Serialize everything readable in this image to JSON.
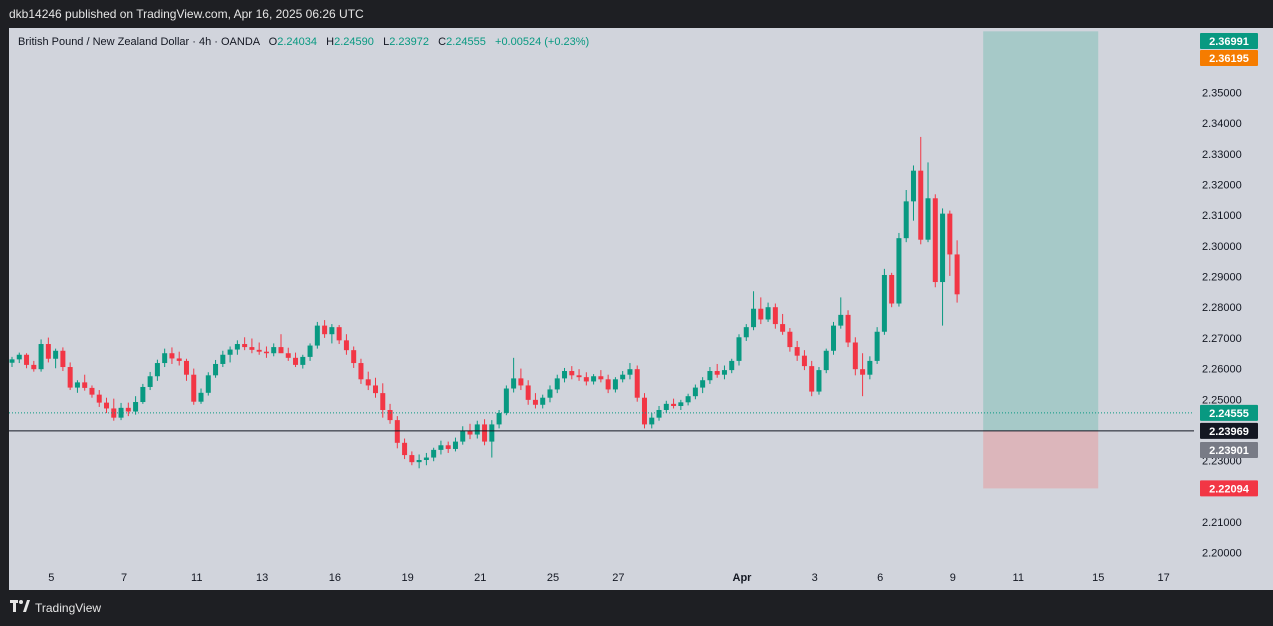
{
  "header": {
    "published_text": "dkb14246 published on TradingView.com, Apr 16, 2025 06:26 UTC"
  },
  "legend": {
    "symbol": "British Pound / New Zealand Dollar · 4h · OANDA",
    "o_label": "O",
    "o_value": "2.24034",
    "h_label": "H",
    "h_value": "2.24590",
    "l_label": "L",
    "l_value": "2.23972",
    "c_label": "C",
    "c_value": "2.24555",
    "change": "+0.00524 (+0.23%)"
  },
  "footer": {
    "brand": "TradingView"
  },
  "colors": {
    "background": "#d1d4dc",
    "up": "#089981",
    "down": "#f23645",
    "profit_zone": "#a6c9c8",
    "loss_zone": "#dcb6bb",
    "frame": "#1e1f23"
  },
  "price_tags": {
    "target": "2.36991",
    "orange": "2.36195",
    "current": "2.24555",
    "entry": "2.23969",
    "gray": "2.23901",
    "stop": "2.22094"
  },
  "chart_data": {
    "type": "candlestick",
    "timeframe": "4h",
    "y_ticks": [
      "2.35000",
      "2.34000",
      "2.33000",
      "2.32000",
      "2.31000",
      "2.30000",
      "2.29000",
      "2.28000",
      "2.27000",
      "2.26000",
      "2.25000",
      "2.24000",
      "2.23000",
      "2.22000",
      "2.21000",
      "2.20000"
    ],
    "x_ticks": [
      "5",
      "7",
      "11",
      "13",
      "16",
      "19",
      "21",
      "25",
      "27",
      "Apr",
      "3",
      "6",
      "9",
      "11",
      "15",
      "17"
    ],
    "ylim": [
      2.195,
      2.371
    ],
    "position": {
      "type": "long",
      "entry": 2.23969,
      "target": 2.36991,
      "stop": 2.22094,
      "start_index": 134,
      "end_index": 149
    },
    "current_price": 2.24555,
    "candles": [
      [
        2.2619,
        2.2638,
        2.2605,
        2.263
      ],
      [
        2.263,
        2.2652,
        2.2618,
        2.2645
      ],
      [
        2.2645,
        2.265,
        2.2601,
        2.2612
      ],
      [
        2.2612,
        2.2625,
        2.259,
        2.2598
      ],
      [
        2.2598,
        2.2695,
        2.259,
        2.268
      ],
      [
        2.268,
        2.2701,
        2.262,
        2.2632
      ],
      [
        2.2632,
        2.2665,
        2.2601,
        2.2658
      ],
      [
        2.2658,
        2.2669,
        2.2592,
        2.2605
      ],
      [
        2.2605,
        2.262,
        2.253,
        2.2538
      ],
      [
        2.2538,
        2.2562,
        2.2521,
        2.2555
      ],
      [
        2.2555,
        2.258,
        2.2528,
        2.2537
      ],
      [
        2.2537,
        2.2545,
        2.2505,
        2.2515
      ],
      [
        2.2515,
        2.253,
        2.2475,
        2.2489
      ],
      [
        2.2489,
        2.2505,
        2.2455,
        2.247
      ],
      [
        2.247,
        2.2502,
        2.243,
        2.244
      ],
      [
        2.244,
        2.2488,
        2.2432,
        2.2472
      ],
      [
        2.2472,
        2.2489,
        2.2445,
        2.246
      ],
      [
        2.246,
        2.251,
        2.245,
        2.2491
      ],
      [
        2.2491,
        2.255,
        2.2485,
        2.254
      ],
      [
        2.254,
        2.2589,
        2.253,
        2.2575
      ],
      [
        2.2575,
        2.2629,
        2.256,
        2.2618
      ],
      [
        2.2618,
        2.2665,
        2.2605,
        2.265
      ],
      [
        2.265,
        2.2669,
        2.2615,
        2.2633
      ],
      [
        2.2633,
        2.2655,
        2.261,
        2.2625
      ],
      [
        2.2625,
        2.2632,
        2.256,
        2.258
      ],
      [
        2.258,
        2.26,
        2.2482,
        2.2492
      ],
      [
        2.2492,
        2.2535,
        2.2485,
        2.2521
      ],
      [
        2.2521,
        2.2588,
        2.2512,
        2.2578
      ],
      [
        2.2578,
        2.2628,
        2.257,
        2.2615
      ],
      [
        2.2615,
        2.2658,
        2.2605,
        2.2645
      ],
      [
        2.2645,
        2.2672,
        2.262,
        2.2662
      ],
      [
        2.2662,
        2.2692,
        2.2645,
        2.268
      ],
      [
        2.268,
        2.2702,
        2.266,
        2.267
      ],
      [
        2.267,
        2.2698,
        2.265,
        2.2661
      ],
      [
        2.2661,
        2.2685,
        2.2645,
        2.2655
      ],
      [
        2.2655,
        2.2672,
        2.2635,
        2.265
      ],
      [
        2.265,
        2.2682,
        2.264,
        2.267
      ],
      [
        2.267,
        2.2712,
        2.266,
        2.265
      ],
      [
        2.265,
        2.2668,
        2.2625,
        2.2635
      ],
      [
        2.2635,
        2.2652,
        2.2605,
        2.2612
      ],
      [
        2.2612,
        2.2645,
        2.26,
        2.2638
      ],
      [
        2.2638,
        2.2682,
        2.2625,
        2.2675
      ],
      [
        2.2675,
        2.2752,
        2.2665,
        2.274
      ],
      [
        2.274,
        2.2758,
        2.27,
        2.2712
      ],
      [
        2.2712,
        2.2745,
        2.2682,
        2.2735
      ],
      [
        2.2735,
        2.2742,
        2.268,
        2.2692
      ],
      [
        2.2692,
        2.2712,
        2.2645,
        2.266
      ],
      [
        2.266,
        2.2672,
        2.2602,
        2.2618
      ],
      [
        2.2618,
        2.2632,
        2.255,
        2.2565
      ],
      [
        2.2565,
        2.259,
        2.253,
        2.2545
      ],
      [
        2.2545,
        2.257,
        2.2505,
        2.252
      ],
      [
        2.252,
        2.2552,
        2.244,
        2.2465
      ],
      [
        2.2465,
        2.2485,
        2.242,
        2.2432
      ],
      [
        2.2432,
        2.2445,
        2.234,
        2.2358
      ],
      [
        2.2358,
        2.2372,
        2.2305,
        2.2318
      ],
      [
        2.2318,
        2.233,
        2.2285,
        2.2295
      ],
      [
        2.2295,
        2.232,
        2.2275,
        2.2302
      ],
      [
        2.2302,
        2.2325,
        2.2285,
        2.231
      ],
      [
        2.231,
        2.2342,
        2.2298,
        2.2335
      ],
      [
        2.2335,
        2.2365,
        2.232,
        2.235
      ],
      [
        2.235,
        2.2362,
        2.2325,
        2.2338
      ],
      [
        2.2338,
        2.2375,
        2.233,
        2.2362
      ],
      [
        2.2362,
        2.2412,
        2.2352,
        2.2398
      ],
      [
        2.2398,
        2.242,
        2.237,
        2.2385
      ],
      [
        2.2385,
        2.243,
        2.2372,
        2.2418
      ],
      [
        2.2418,
        2.2435,
        2.235,
        2.2362
      ],
      [
        2.2362,
        2.2432,
        2.231,
        2.2418
      ],
      [
        2.2418,
        2.2465,
        2.2405,
        2.2455
      ],
      [
        2.2455,
        2.2545,
        2.2448,
        2.2535
      ],
      [
        2.2535,
        2.2635,
        2.2522,
        2.2568
      ],
      [
        2.2568,
        2.26,
        2.253,
        2.2545
      ],
      [
        2.2545,
        2.2562,
        2.2482,
        2.2498
      ],
      [
        2.2498,
        2.252,
        2.247,
        2.2482
      ],
      [
        2.2482,
        2.2515,
        2.247,
        2.2505
      ],
      [
        2.2505,
        2.2545,
        2.249,
        2.2532
      ],
      [
        2.2532,
        2.258,
        2.252,
        2.2568
      ],
      [
        2.2568,
        2.2602,
        2.2555,
        2.2592
      ],
      [
        2.2592,
        2.2608,
        2.2565,
        2.2578
      ],
      [
        2.2578,
        2.2598,
        2.256,
        2.2572
      ],
      [
        2.2572,
        2.2588,
        2.2545,
        2.2558
      ],
      [
        2.2558,
        2.2582,
        2.2548,
        2.2575
      ],
      [
        2.2575,
        2.2595,
        2.2555,
        2.2565
      ],
      [
        2.2565,
        2.258,
        2.252,
        2.2532
      ],
      [
        2.2532,
        2.2572,
        2.2522,
        2.2565
      ],
      [
        2.2565,
        2.2592,
        2.2555,
        2.258
      ],
      [
        2.258,
        2.2618,
        2.2565,
        2.2598
      ],
      [
        2.2598,
        2.261,
        2.2492,
        2.2505
      ],
      [
        2.2505,
        2.252,
        2.2405,
        2.2418
      ],
      [
        2.2418,
        2.2455,
        2.2405,
        2.244
      ],
      [
        2.244,
        2.2478,
        2.243,
        2.2465
      ],
      [
        2.2465,
        2.2495,
        2.2455,
        2.2485
      ],
      [
        2.2485,
        2.2502,
        2.247,
        2.2478
      ],
      [
        2.2478,
        2.2498,
        2.2465,
        2.249
      ],
      [
        2.249,
        2.2518,
        2.248,
        2.251
      ],
      [
        2.251,
        2.2548,
        2.25,
        2.2538
      ],
      [
        2.2538,
        2.2572,
        2.252,
        2.2562
      ],
      [
        2.2562,
        2.2605,
        2.255,
        2.2592
      ],
      [
        2.2592,
        2.2615,
        2.257,
        2.258
      ],
      [
        2.258,
        2.261,
        2.2565,
        2.2595
      ],
      [
        2.2595,
        2.2632,
        2.2585,
        2.2625
      ],
      [
        2.2625,
        2.2712,
        2.261,
        2.2702
      ],
      [
        2.2702,
        2.2745,
        2.269,
        2.2735
      ],
      [
        2.2735,
        2.2852,
        2.2725,
        2.2795
      ],
      [
        2.2795,
        2.2832,
        2.2745,
        2.276
      ],
      [
        2.276,
        2.2815,
        2.2752,
        2.28
      ],
      [
        2.28,
        2.2812,
        2.273,
        2.2745
      ],
      [
        2.2745,
        2.2778,
        2.271,
        2.272
      ],
      [
        2.272,
        2.2732,
        2.2655,
        2.267
      ],
      [
        2.267,
        2.269,
        2.2625,
        2.2642
      ],
      [
        2.2642,
        2.266,
        2.2595,
        2.2608
      ],
      [
        2.2608,
        2.2625,
        2.251,
        2.2525
      ],
      [
        2.2525,
        2.2605,
        2.2515,
        2.2595
      ],
      [
        2.2595,
        2.2665,
        2.2585,
        2.2658
      ],
      [
        2.2658,
        2.2752,
        2.2645,
        2.274
      ],
      [
        2.274,
        2.2832,
        2.273,
        2.2775
      ],
      [
        2.2775,
        2.279,
        2.267,
        2.2685
      ],
      [
        2.2685,
        2.2702,
        2.2578,
        2.2598
      ],
      [
        2.2598,
        2.265,
        2.251,
        2.258
      ],
      [
        2.258,
        2.264,
        2.2565,
        2.2625
      ],
      [
        2.2625,
        2.2735,
        2.2615,
        2.272
      ],
      [
        2.272,
        2.2925,
        2.271,
        2.2905
      ],
      [
        2.2905,
        2.2912,
        2.28,
        2.2812
      ],
      [
        2.2812,
        2.3042,
        2.2802,
        2.3025
      ],
      [
        2.3025,
        2.3182,
        2.3012,
        2.3145
      ],
      [
        2.3145,
        2.3262,
        2.3082,
        2.3245
      ],
      [
        2.3245,
        2.3355,
        2.3005,
        2.302
      ],
      [
        2.302,
        2.3272,
        2.3012,
        2.3155
      ],
      [
        2.3155,
        2.3168,
        2.2865,
        2.2882
      ],
      [
        2.2882,
        2.3122,
        2.274,
        2.3105
      ],
      [
        2.3105,
        2.3115,
        2.2902,
        2.2972
      ],
      [
        2.2972,
        2.3018,
        2.2815,
        2.2842
      ]
    ]
  }
}
